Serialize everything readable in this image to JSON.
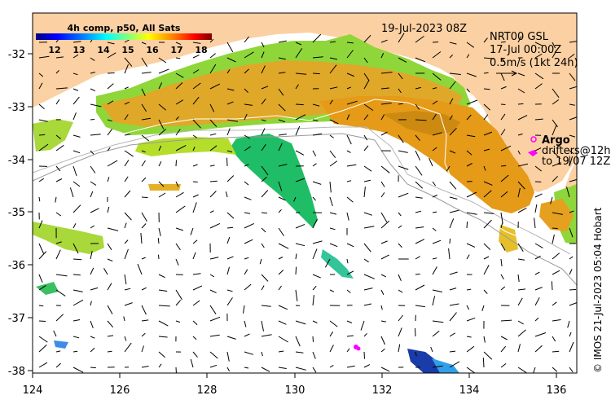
{
  "map": {
    "date_label": "19-Jul-2023 08Z",
    "credit": "© IMOS 21-Jul-2023 05:04 Hobart",
    "lon_ticks": [
      "124",
      "126",
      "128",
      "130",
      "132",
      "134",
      "136"
    ],
    "lat_ticks": [
      "-32",
      "-33",
      "-34",
      "-35",
      "-36",
      "-37",
      "-38"
    ],
    "lon_range": [
      124,
      136.5
    ],
    "lat_range": [
      -38.1,
      -31.3
    ],
    "colors": {
      "land": "#fbd0a2",
      "ocean": "#ffffff",
      "current_vector": "#000000",
      "argo": "#ff00ff"
    }
  },
  "colorbar": {
    "title": "4h comp, p50, All Sats",
    "ticks": [
      "12",
      "13",
      "14",
      "15",
      "16",
      "17",
      "18"
    ],
    "range": [
      11.5,
      18.5
    ],
    "colormap": [
      "#000080",
      "#0000ff",
      "#0080ff",
      "#00ffff",
      "#80ff80",
      "#ffff00",
      "#ff8000",
      "#ff0000",
      "#800000"
    ]
  },
  "currents": {
    "line1": "NRT00 GSL",
    "line2": "17-Jul 00:00Z",
    "line3": "0.5m/s (1kt 24h)"
  },
  "argo": {
    "title": "Argo",
    "line1": "drifters@12h",
    "line2": "to 19/07 12Z"
  }
}
